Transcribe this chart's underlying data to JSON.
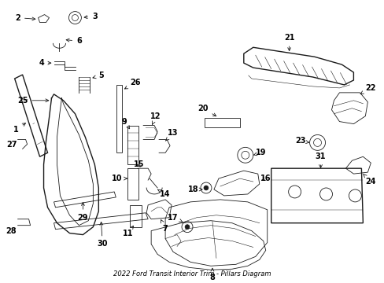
{
  "title": "2022 Ford Transit Interior Trim - Pillars Diagram",
  "bg_color": "#ffffff",
  "line_color": "#1a1a1a",
  "text_color": "#000000",
  "fig_width": 4.89,
  "fig_height": 3.6,
  "dpi": 100
}
